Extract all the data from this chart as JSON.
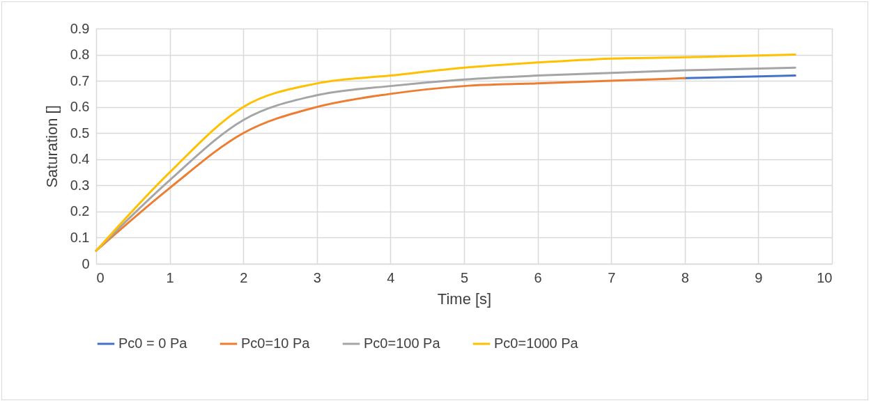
{
  "chart_data": {
    "type": "line",
    "xlabel": "Time [s]",
    "ylabel": "Saturation []",
    "xlim": [
      0,
      10
    ],
    "ylim": [
      0,
      0.9
    ],
    "xticks": [
      0,
      1,
      2,
      3,
      4,
      5,
      6,
      7,
      8,
      9,
      10
    ],
    "yticks": [
      0,
      0.1,
      0.2,
      0.3,
      0.4,
      0.5,
      0.6,
      0.7,
      0.8,
      0.9
    ],
    "grid": true,
    "legend": "bottom",
    "marker": "none",
    "line_style": "solid",
    "series": [
      {
        "name": "Pc0 = 0 Pa",
        "color": "#4472c4",
        "x": [
          8,
          9.5
        ],
        "values": [
          0.71,
          0.72
        ]
      },
      {
        "name": "Pc0=10 Pa",
        "color": "#ed7d31",
        "x": [
          0,
          1,
          2,
          3,
          4,
          5,
          6,
          7,
          8
        ],
        "values": [
          0.05,
          0.29,
          0.5,
          0.6,
          0.65,
          0.68,
          0.69,
          0.7,
          0.71
        ]
      },
      {
        "name": "Pc0=100 Pa",
        "color": "#a5a5a5",
        "x": [
          0,
          1,
          2,
          3,
          4,
          5,
          6,
          7,
          8,
          9.5
        ],
        "values": [
          0.05,
          0.32,
          0.55,
          0.645,
          0.68,
          0.705,
          0.72,
          0.73,
          0.74,
          0.75
        ]
      },
      {
        "name": "Pc0=1000 Pa",
        "color": "#ffc000",
        "x": [
          0,
          1,
          2,
          3,
          4,
          5,
          6,
          7,
          8,
          9.5
        ],
        "values": [
          0.05,
          0.35,
          0.6,
          0.69,
          0.72,
          0.75,
          0.77,
          0.785,
          0.79,
          0.8
        ]
      }
    ]
  }
}
